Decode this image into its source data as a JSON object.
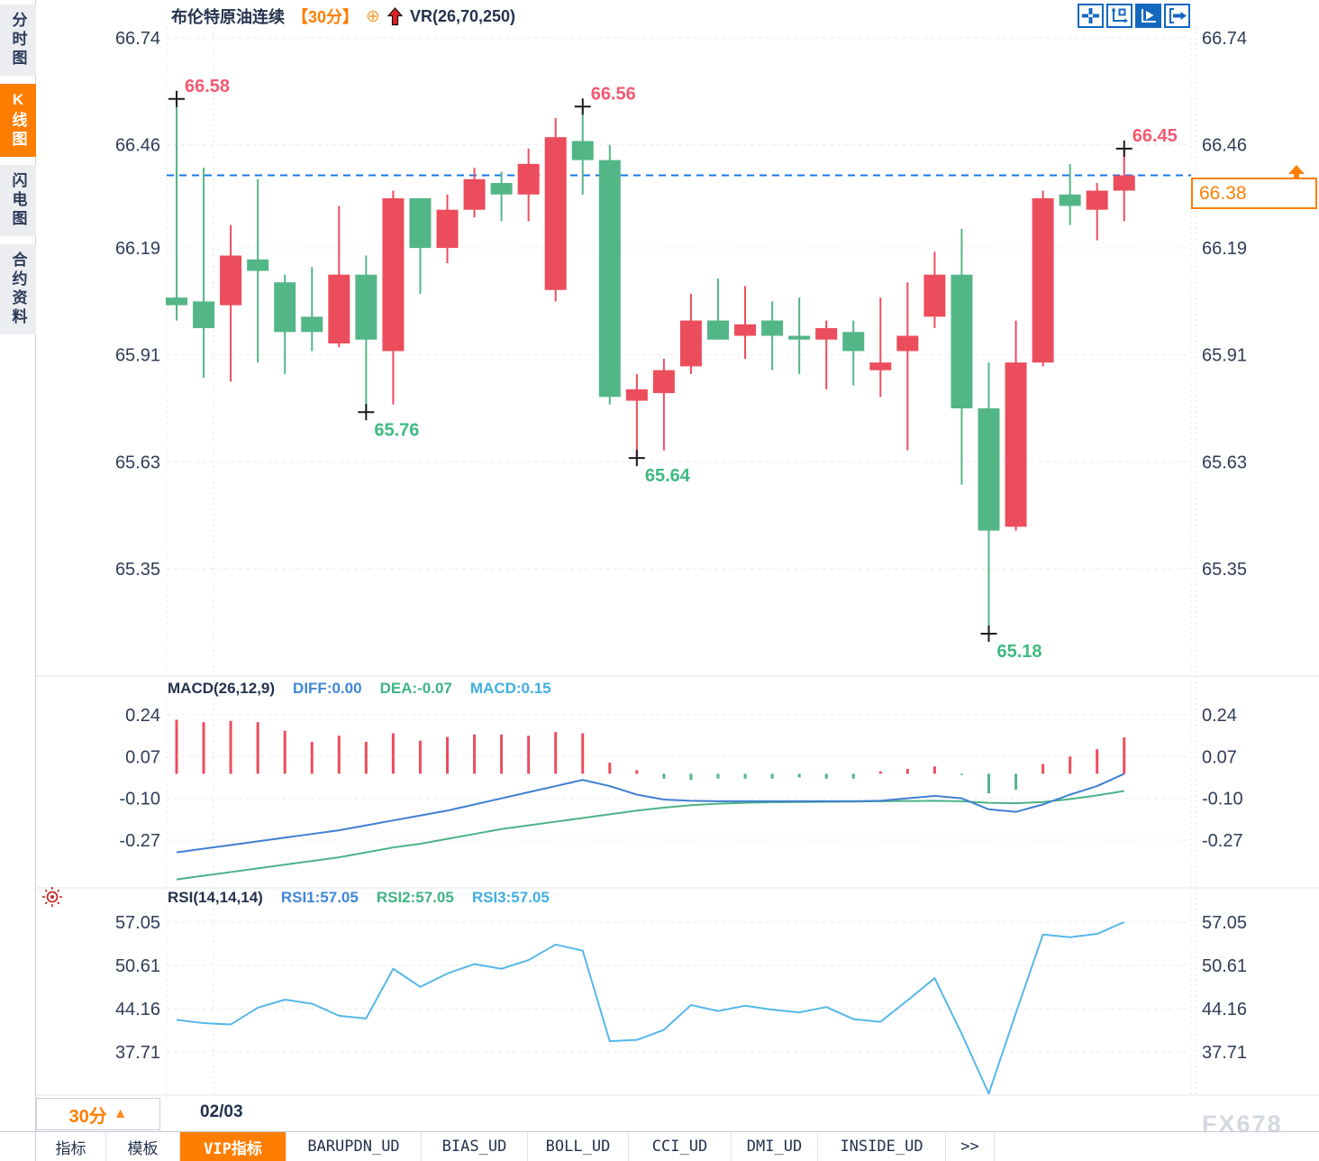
{
  "sidebar": {
    "tabs": [
      {
        "label": "分时图",
        "active": false
      },
      {
        "label": "K线图",
        "active": true
      },
      {
        "label": "闪电图",
        "active": false
      },
      {
        "label": "合约资料",
        "active": false
      }
    ]
  },
  "header": {
    "title": "布伦特原油连续",
    "period_tag": "【30分】",
    "plus_icon": "⊕",
    "indicator_label": "VR(26,70,250)"
  },
  "toolbar": {
    "icons": [
      "move-cross",
      "axis-scale",
      "auto-track",
      "page-right"
    ]
  },
  "price_tag": {
    "value": "66.38"
  },
  "bottom": {
    "period_button": "30分",
    "period_arrow": "▲",
    "date_label": "02/03",
    "watermark": "FX678",
    "tabs": [
      {
        "label": "指标",
        "active": false
      },
      {
        "label": "模板",
        "active": false
      },
      {
        "label": "VIP指标",
        "active": true
      },
      {
        "label": "BARUPDN_UD",
        "active": false
      },
      {
        "label": "BIAS_UD",
        "active": false
      },
      {
        "label": "BOLL_UD",
        "active": false
      },
      {
        "label": "CCI_UD",
        "active": false
      },
      {
        "label": "DMI_UD",
        "active": false
      },
      {
        "label": "INSIDE_UD",
        "active": false
      },
      {
        "label": ">>",
        "active": false
      }
    ]
  },
  "chart_data": {
    "type": "candlestick",
    "colors": {
      "up": "#ec4d5c",
      "down": "#53b687",
      "diff_line": "#3f7fd0",
      "dea_line": "#4bb385",
      "rsi_line": "#56b7e8",
      "dashed_price_line": "#1a78e8",
      "axis_text": "#2f3d58",
      "annotation_high": "#f25a70",
      "annotation_low": "#3fba80",
      "accent_orange": "#ff7e00",
      "toolbar_blue": "#1468c0"
    },
    "panels": {
      "price": {
        "axis_labels": [
          "66.74",
          "66.46",
          "66.19",
          "65.91",
          "65.63",
          "65.35"
        ],
        "axis_values": [
          66.74,
          66.46,
          66.19,
          65.91,
          65.63,
          65.35
        ],
        "dashed_price_line": 66.38,
        "annotations": [
          {
            "label": "66.58",
            "index": 0,
            "type": "high"
          },
          {
            "label": "66.56",
            "index": 15,
            "type": "high"
          },
          {
            "label": "66.45",
            "index": 35,
            "type": "high"
          },
          {
            "label": "65.76",
            "index": 7,
            "type": "low"
          },
          {
            "label": "65.64",
            "index": 17,
            "type": "low"
          },
          {
            "label": "65.18",
            "index": 30,
            "type": "low"
          }
        ],
        "candles_ohlc": [
          [
            66.06,
            66.58,
            66.0,
            66.04
          ],
          [
            66.05,
            66.4,
            65.85,
            65.98
          ],
          [
            66.04,
            66.25,
            65.84,
            66.17
          ],
          [
            66.16,
            66.37,
            65.89,
            66.13
          ],
          [
            66.1,
            66.12,
            65.86,
            65.97
          ],
          [
            66.01,
            66.14,
            65.92,
            65.97
          ],
          [
            65.94,
            66.3,
            65.93,
            66.12
          ],
          [
            66.12,
            66.17,
            65.76,
            65.95
          ],
          [
            65.92,
            66.34,
            65.78,
            66.32
          ],
          [
            66.32,
            66.32,
            66.07,
            66.19
          ],
          [
            66.19,
            66.33,
            66.15,
            66.29
          ],
          [
            66.29,
            66.4,
            66.27,
            66.37
          ],
          [
            66.36,
            66.39,
            66.26,
            66.33
          ],
          [
            66.33,
            66.45,
            66.26,
            66.41
          ],
          [
            66.08,
            66.53,
            66.05,
            66.48
          ],
          [
            66.47,
            66.56,
            66.33,
            66.42
          ],
          [
            66.42,
            66.46,
            65.78,
            65.8
          ],
          [
            65.79,
            65.86,
            65.64,
            65.82
          ],
          [
            65.81,
            65.9,
            65.66,
            65.87
          ],
          [
            65.88,
            66.07,
            65.86,
            66.0
          ],
          [
            66.0,
            66.11,
            65.95,
            65.95
          ],
          [
            65.96,
            66.09,
            65.9,
            65.99
          ],
          [
            66.0,
            66.05,
            65.87,
            65.96
          ],
          [
            65.96,
            66.06,
            65.86,
            65.95
          ],
          [
            65.95,
            66.0,
            65.82,
            65.98
          ],
          [
            65.97,
            66.0,
            65.83,
            65.92
          ],
          [
            65.87,
            66.06,
            65.8,
            65.89
          ],
          [
            65.92,
            66.1,
            65.66,
            65.96
          ],
          [
            66.01,
            66.18,
            65.98,
            66.12
          ],
          [
            66.12,
            66.24,
            65.57,
            65.77
          ],
          [
            65.77,
            65.89,
            65.18,
            65.45
          ],
          [
            65.46,
            66.0,
            65.45,
            65.89
          ],
          [
            65.89,
            66.34,
            65.88,
            66.32
          ],
          [
            66.33,
            66.41,
            66.25,
            66.3
          ],
          [
            66.29,
            66.36,
            66.21,
            66.34
          ],
          [
            66.34,
            66.45,
            66.26,
            66.38
          ]
        ]
      },
      "macd": {
        "name_label": "MACD(26,12,9)",
        "diff_label": "DIFF:0.00",
        "dea_label": "DEA:-0.07",
        "macd_label": "MACD:0.15",
        "axis_labels": [
          "0.24",
          "0.07",
          "-0.10",
          "-0.27"
        ],
        "axis_values": [
          0.24,
          0.07,
          -0.1,
          -0.27
        ],
        "histogram": [
          0.22,
          0.21,
          0.215,
          0.21,
          0.175,
          0.13,
          0.155,
          0.13,
          0.165,
          0.135,
          0.15,
          0.16,
          0.16,
          0.155,
          0.17,
          0.165,
          0.045,
          0.015,
          -0.02,
          -0.025,
          -0.02,
          -0.02,
          -0.02,
          -0.015,
          -0.02,
          -0.02,
          0.01,
          0.02,
          0.03,
          -0.005,
          -0.08,
          -0.065,
          0.04,
          0.07,
          0.1,
          0.148
        ],
        "diff": [
          -0.32,
          -0.305,
          -0.29,
          -0.275,
          -0.26,
          -0.245,
          -0.23,
          -0.21,
          -0.19,
          -0.17,
          -0.15,
          -0.125,
          -0.1,
          -0.075,
          -0.05,
          -0.025,
          -0.05,
          -0.085,
          -0.105,
          -0.11,
          -0.112,
          -0.112,
          -0.112,
          -0.112,
          -0.112,
          -0.112,
          -0.11,
          -0.1,
          -0.09,
          -0.1,
          -0.145,
          -0.155,
          -0.125,
          -0.085,
          -0.05,
          0.0
        ],
        "dea": [
          -0.43,
          -0.415,
          -0.4,
          -0.385,
          -0.37,
          -0.355,
          -0.34,
          -0.32,
          -0.3,
          -0.285,
          -0.265,
          -0.245,
          -0.225,
          -0.21,
          -0.195,
          -0.18,
          -0.165,
          -0.15,
          -0.138,
          -0.128,
          -0.122,
          -0.118,
          -0.116,
          -0.115,
          -0.114,
          -0.113,
          -0.112,
          -0.111,
          -0.11,
          -0.112,
          -0.118,
          -0.12,
          -0.115,
          -0.103,
          -0.088,
          -0.07
        ]
      },
      "rsi": {
        "name_label": "RSI(14,14,14)",
        "rsi1_label": "RSI1:57.05",
        "rsi2_label": "RSI2:57.05",
        "rsi3_label": "RSI3:57.05",
        "axis_labels": [
          "57.05",
          "50.61",
          "44.16",
          "37.71"
        ],
        "axis_values": [
          57.05,
          50.61,
          44.16,
          37.71
        ],
        "values": [
          42.5,
          42.0,
          41.8,
          44.3,
          45.5,
          44.9,
          43.1,
          42.7,
          50.1,
          47.4,
          49.4,
          50.8,
          50.1,
          51.4,
          53.7,
          52.8,
          39.3,
          39.5,
          41.0,
          44.7,
          43.8,
          44.6,
          44.0,
          43.6,
          44.4,
          42.6,
          42.2,
          45.4,
          48.7,
          40.4,
          31.5,
          43.5,
          55.2,
          54.8,
          55.3,
          57.05
        ]
      }
    }
  }
}
